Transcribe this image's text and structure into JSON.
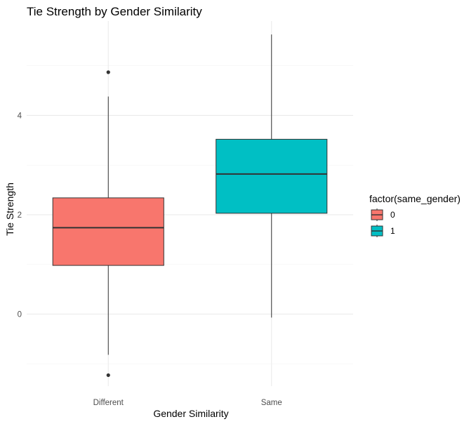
{
  "chart_data": {
    "type": "boxplot",
    "title": "Tie Strength by Gender Similarity",
    "xlabel": "Gender Similarity",
    "ylabel": "Tie Strength",
    "ylim": [
      -1.45,
      5.9
    ],
    "yticks": [
      0,
      2,
      4
    ],
    "categories": [
      "Different",
      "Same"
    ],
    "legend": {
      "title": "factor(same_gender)",
      "placement": "right",
      "entries": [
        {
          "label": "0",
          "color": "#F8766D"
        },
        {
          "label": "1",
          "color": "#00BFC4"
        }
      ]
    },
    "boxes": [
      {
        "category": "Different",
        "group": "0",
        "color": "#F8766D",
        "whisker_low": -0.82,
        "q1": 0.98,
        "median": 1.74,
        "q3": 2.34,
        "whisker_high": 4.38,
        "outliers": [
          4.87,
          -1.23
        ]
      },
      {
        "category": "Same",
        "group": "1",
        "color": "#00BFC4",
        "whisker_low": -0.07,
        "q1": 2.03,
        "median": 2.82,
        "q3": 3.52,
        "whisker_high": 5.63,
        "outliers": []
      }
    ],
    "grid": true
  }
}
